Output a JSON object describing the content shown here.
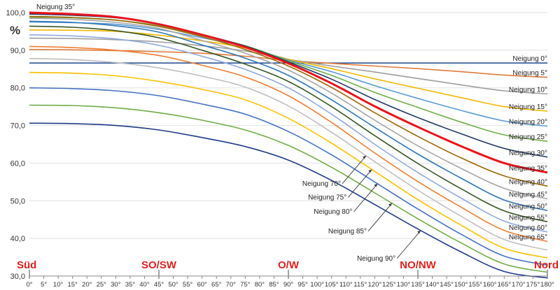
{
  "chart_data": {
    "type": "line",
    "ylabel": "%",
    "ylim": [
      30,
      100
    ],
    "xlim": [
      0,
      180
    ],
    "y_ticks": [
      "30,0",
      "40,0",
      "50,0",
      "60,0",
      "70,0",
      "80,0",
      "90,0",
      "100,0"
    ],
    "x_ticks": [
      "0°",
      "5°",
      "10°",
      "15°",
      "20°",
      "25°",
      "30°",
      "35°",
      "40°",
      "45°",
      "50°",
      "55°",
      "60°",
      "65°",
      "70°",
      "75°",
      "80°",
      "85°",
      "90°",
      "95°",
      "100°",
      "105°",
      "110°",
      "115°",
      "120°",
      "125°",
      "130°",
      "135°",
      "140°",
      "145°",
      "150°",
      "155°",
      "160°",
      "165°",
      "170°",
      "175°",
      "180°"
    ],
    "direction_labels": [
      {
        "text": "Süd",
        "x": 0
      },
      {
        "text": "SO/SW",
        "x": 45
      },
      {
        "text": "O/W",
        "x": 90
      },
      {
        "text": "NO/NW",
        "x": 135
      },
      {
        "text": "Nord",
        "x": 180
      }
    ],
    "grid": "horizontal",
    "x": [
      0,
      15,
      30,
      45,
      60,
      75,
      90,
      105,
      120,
      135,
      150,
      165,
      180
    ],
    "series": [
      {
        "name": "Neigung 0°",
        "color": "#2f5597",
        "values": [
          86.6,
          86.6,
          86.6,
          86.6,
          86.6,
          86.6,
          86.6,
          86.6,
          86.6,
          86.6,
          86.6,
          86.6,
          86.6
        ]
      },
      {
        "name": "Neigung 5°",
        "color": "#e07b39",
        "values": [
          90.2,
          90.1,
          89.9,
          89.6,
          89.2,
          88.4,
          87.3,
          86.5,
          85.8,
          85.1,
          84.3,
          83.4,
          82.8
        ]
      },
      {
        "name": "Neigung 10°",
        "color": "#9e9e9e",
        "values": [
          93.2,
          93.1,
          92.8,
          92.2,
          91.2,
          89.8,
          87.6,
          85.8,
          84.2,
          82.5,
          80.8,
          79.2,
          78.4
        ]
      },
      {
        "name": "Neigung 15°",
        "color": "#f2b800",
        "values": [
          95.4,
          95.3,
          95.0,
          94.0,
          92.5,
          90.6,
          87.6,
          85.1,
          82.4,
          79.9,
          77.4,
          75.0,
          73.8
        ]
      },
      {
        "name": "Neigung 20°",
        "color": "#5b9bd5",
        "values": [
          97.5,
          97.3,
          96.9,
          95.5,
          93.3,
          91.0,
          87.4,
          84.3,
          80.6,
          77.2,
          74.0,
          71.2,
          69.8
        ]
      },
      {
        "name": "Neigung 25°",
        "color": "#70ad47",
        "values": [
          98.8,
          98.6,
          98.0,
          96.5,
          93.9,
          91.2,
          87.2,
          83.3,
          78.8,
          74.8,
          70.9,
          67.5,
          65.8
        ]
      },
      {
        "name": "Neigung 30°",
        "color": "#203864",
        "values": [
          99.6,
          99.3,
          98.6,
          97.0,
          94.2,
          91.1,
          86.9,
          82.3,
          76.9,
          72.1,
          67.8,
          63.9,
          61.6
        ]
      },
      {
        "name": "Neigung 35°",
        "color": "#e8141c",
        "values": [
          100.0,
          99.6,
          98.8,
          96.9,
          94.1,
          90.8,
          86.5,
          81.2,
          75.1,
          69.6,
          64.5,
          60.0,
          57.5
        ]
      },
      {
        "name": "Neigung 40°",
        "color": "#9c6500",
        "values": [
          99.0,
          98.7,
          98.0,
          96.3,
          93.6,
          90.2,
          85.8,
          80.1,
          73.4,
          67.1,
          61.4,
          56.6,
          53.9
        ]
      },
      {
        "name": "Neigung 45°",
        "color": "#a5a5a5",
        "values": [
          98.5,
          98.2,
          97.4,
          95.8,
          92.6,
          89.2,
          84.7,
          78.6,
          71.4,
          64.6,
          58.6,
          53.3,
          50.5
        ]
      },
      {
        "name": "Neigung 50°",
        "color": "#2e75b6",
        "values": [
          97.7,
          97.4,
          96.5,
          94.8,
          91.4,
          87.9,
          83.3,
          76.8,
          69.5,
          62.4,
          56.0,
          50.2,
          47.4
        ]
      },
      {
        "name": "Neigung 55°",
        "color": "#375623",
        "values": [
          96.4,
          96.1,
          95.2,
          93.3,
          90.0,
          86.3,
          81.7,
          75.0,
          67.3,
          59.9,
          53.2,
          47.3,
          44.4
        ]
      },
      {
        "name": "Neigung 60°",
        "color": "#8faadc",
        "values": [
          94.1,
          93.8,
          93.0,
          91.3,
          88.4,
          84.9,
          80.0,
          73.0,
          65.0,
          57.5,
          50.7,
          44.6,
          41.7
        ]
      },
      {
        "name": "Neigung 65°",
        "color": "#ed7d31",
        "values": [
          91.0,
          90.7,
          90.0,
          88.6,
          86.0,
          82.9,
          77.9,
          70.8,
          62.7,
          55.1,
          48.3,
          42.1,
          39.2
        ]
      },
      {
        "name": "Neigung 70°",
        "color": "#bfbfbf",
        "values": [
          87.8,
          87.5,
          86.7,
          85.3,
          83.1,
          80.2,
          75.2,
          68.2,
          60.4,
          52.8,
          45.9,
          39.7,
          36.9
        ]
      },
      {
        "name": "Neigung 75°",
        "color": "#ffc000",
        "values": [
          84.1,
          83.9,
          83.2,
          81.7,
          79.6,
          76.8,
          71.9,
          65.3,
          57.8,
          50.3,
          43.5,
          37.4,
          34.8
        ]
      },
      {
        "name": "Neigung 80°",
        "color": "#4472c4",
        "values": [
          80.0,
          79.8,
          79.2,
          77.9,
          75.7,
          73.0,
          68.4,
          62.2,
          55.0,
          47.8,
          41.1,
          35.3,
          32.9
        ]
      },
      {
        "name": "Neigung 85°",
        "color": "#70ad47",
        "values": [
          75.4,
          75.3,
          74.7,
          73.4,
          71.4,
          68.8,
          64.7,
          58.9,
          52.1,
          45.2,
          38.8,
          33.2,
          31.0
        ]
      },
      {
        "name": "Neigung 90°",
        "color": "#1f3c88",
        "values": [
          70.6,
          70.5,
          70.0,
          68.8,
          66.8,
          64.4,
          60.8,
          55.4,
          49.0,
          42.5,
          36.4,
          31.2,
          29.5
        ]
      }
    ],
    "series_labels": [
      {
        "series": 0,
        "text": "Neigung   0°"
      },
      {
        "series": 1,
        "text": "Neigung   5°"
      },
      {
        "series": 2,
        "text": "Neigung  10°"
      },
      {
        "series": 3,
        "text": "Neigung  15°"
      },
      {
        "series": 4,
        "text": "Neigung  20°"
      },
      {
        "series": 5,
        "text": "Neigung  25°"
      },
      {
        "series": 6,
        "text": "Neigung  30°"
      },
      {
        "series": 7,
        "text": "Neigung  35°"
      },
      {
        "series": 8,
        "text": "Neigung  40°"
      },
      {
        "series": 9,
        "text": "Neigung  45°"
      },
      {
        "series": 10,
        "text": "Neigung  50°"
      },
      {
        "series": 11,
        "text": "Neigung  55°"
      },
      {
        "series": 12,
        "text": "Neigung  60°"
      },
      {
        "series": 13,
        "text": "Neigung  65°"
      }
    ],
    "top_label": {
      "series": 7,
      "text": "Neigung  35°"
    },
    "callouts": [
      {
        "series": 14,
        "text": "Neigung  70°",
        "at_x": 117
      },
      {
        "series": 15,
        "text": "Neigung  75°",
        "at_x": 119
      },
      {
        "series": 16,
        "text": "Neigung  80°",
        "at_x": 121
      },
      {
        "series": 17,
        "text": "Neigung  85°",
        "at_x": 126
      },
      {
        "series": 18,
        "text": "Neigung  90°",
        "at_x": 136
      }
    ]
  }
}
